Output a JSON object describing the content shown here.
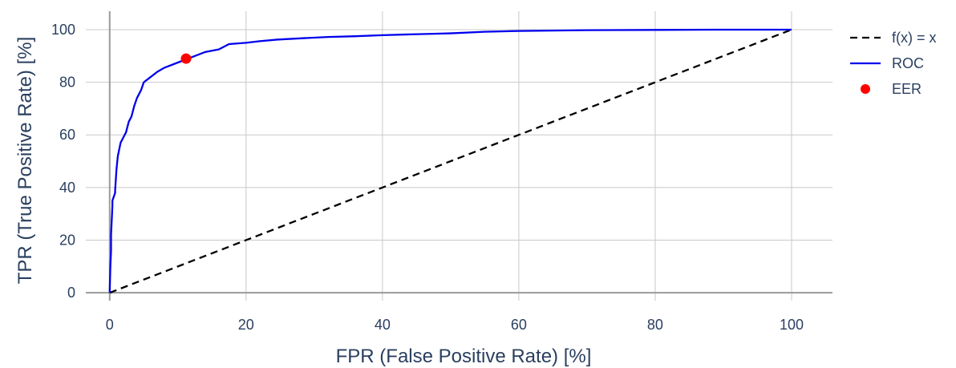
{
  "chart_data": {
    "type": "line",
    "xlabel": "FPR (False Positive Rate) [%]",
    "ylabel": "TPR (True Positive Rate) [%]",
    "xlim": [
      -3.5,
      106
    ],
    "ylim": [
      -3,
      107
    ],
    "xticks": [
      0,
      20,
      40,
      60,
      80,
      100
    ],
    "xtick_labels": [
      "0",
      "20",
      "40",
      "60",
      "80",
      "100"
    ],
    "yticks": [
      0,
      20,
      40,
      60,
      80,
      100
    ],
    "ytick_labels": [
      "0",
      "20",
      "40",
      "60",
      "80",
      "100"
    ],
    "grid": true,
    "legend_position": "right",
    "series": [
      {
        "name": "f(x) = x",
        "style": "dashed",
        "color": "#000000",
        "x": [
          0,
          100
        ],
        "y": [
          0,
          100
        ]
      },
      {
        "name": "ROC",
        "style": "solid",
        "color": "#0000ee",
        "x": [
          0,
          0.1,
          0.2,
          0.2,
          0.4,
          0.4,
          0.8,
          0.8,
          1.0,
          1.2,
          1.6,
          2.0,
          2.4,
          2.8,
          3.0,
          3.2,
          3.6,
          4.0,
          4.6,
          5.0,
          6.0,
          7.0,
          8.0,
          10.0,
          12.0,
          14.0,
          16.0,
          17.5,
          20.0,
          22.0,
          24.5,
          28.0,
          32.0,
          36.0,
          40.0,
          44.0,
          47.0,
          50.0,
          55.0,
          60.0,
          70.0,
          80.0,
          90.0,
          100.0
        ],
        "y": [
          0,
          10,
          16,
          22,
          33,
          35,
          38,
          39,
          47,
          52,
          57,
          59,
          61,
          65,
          66,
          67,
          71,
          74,
          77,
          80,
          82,
          84,
          85.5,
          87.5,
          89.5,
          91.5,
          92.5,
          94.5,
          95,
          95.6,
          96.2,
          96.7,
          97.2,
          97.5,
          97.9,
          98.2,
          98.4,
          98.6,
          99.2,
          99.5,
          99.8,
          99.9,
          100,
          100
        ]
      },
      {
        "name": "EER",
        "style": "marker",
        "color": "#ff0000",
        "x": [
          11.2
        ],
        "y": [
          89.0
        ]
      }
    ]
  }
}
